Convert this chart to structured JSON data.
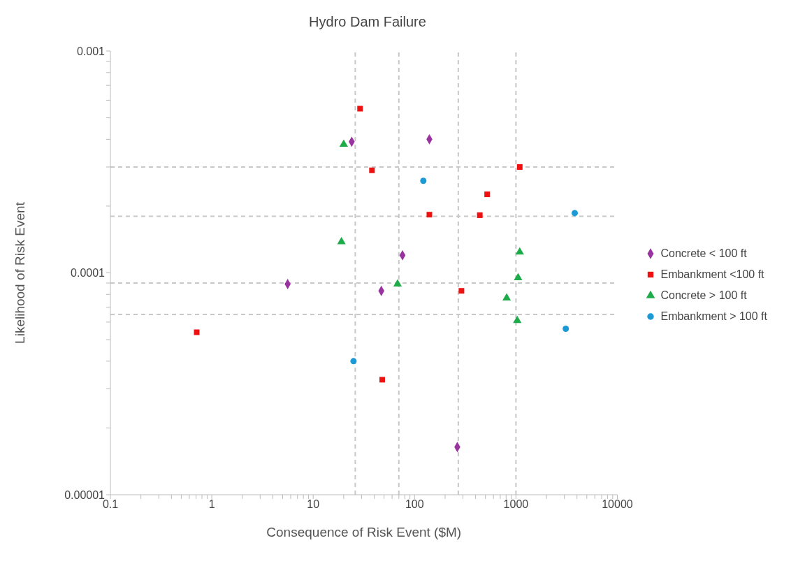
{
  "chart_data": {
    "type": "scatter",
    "title": "Hydro Dam Failure",
    "xlabel": "Consequence of Risk Event ($M)",
    "ylabel": "Likelihood of Risk Event",
    "log": "xy",
    "grid": false,
    "legend": "right",
    "xlim": [
      0.1,
      10000
    ],
    "ylim": [
      1e-05,
      0.001
    ],
    "xticks": [
      0.1,
      {
        "value": 0.2,
        "label": null
      },
      {
        "value": 0.3,
        "label": null
      },
      {
        "value": 0.4,
        "label": null
      },
      {
        "value": 0.5,
        "label": null
      },
      {
        "value": 0.6,
        "label": null
      },
      {
        "value": 0.7,
        "label": null
      },
      {
        "value": 0.8,
        "label": null
      },
      {
        "value": 0.9,
        "label": null
      },
      1,
      {
        "value": 2,
        "label": null
      },
      {
        "value": 3,
        "label": null
      },
      {
        "value": 4,
        "label": null
      },
      {
        "value": 5,
        "label": null
      },
      {
        "value": 6,
        "label": null
      },
      {
        "value": 7,
        "label": null
      },
      {
        "value": 8,
        "label": null
      },
      {
        "value": 9,
        "label": null
      },
      10,
      {
        "value": 20,
        "label": null
      },
      {
        "value": 30,
        "label": null
      },
      {
        "value": 40,
        "label": null
      },
      {
        "value": 50,
        "label": null
      },
      {
        "value": 60,
        "label": null
      },
      {
        "value": 70,
        "label": null
      },
      {
        "value": 80,
        "label": null
      },
      {
        "value": 90,
        "label": null
      },
      100,
      {
        "value": 200,
        "label": null
      },
      {
        "value": 300,
        "label": null
      },
      {
        "value": 400,
        "label": null
      },
      {
        "value": 500,
        "label": null
      },
      {
        "value": 600,
        "label": null
      },
      {
        "value": 700,
        "label": null
      },
      {
        "value": 800,
        "label": null
      },
      {
        "value": 900,
        "label": null
      },
      1000,
      {
        "value": 2000,
        "label": null
      },
      {
        "value": 3000,
        "label": null
      },
      {
        "value": 4000,
        "label": null
      },
      {
        "value": 5000,
        "label": null
      },
      {
        "value": 6000,
        "label": null
      },
      {
        "value": 7000,
        "label": null
      },
      {
        "value": 8000,
        "label": null
      },
      {
        "value": 9000,
        "label": null
      },
      10000
    ],
    "yticks": [
      {
        "value": 1e-05,
        "label": "0.00001"
      },
      {
        "value": 2e-05,
        "label": null
      },
      {
        "value": 3e-05,
        "label": null
      },
      {
        "value": 4e-05,
        "label": null
      },
      {
        "value": 5e-05,
        "label": null
      },
      {
        "value": 6e-05,
        "label": null
      },
      {
        "value": 7e-05,
        "label": null
      },
      {
        "value": 8e-05,
        "label": null
      },
      {
        "value": 9e-05,
        "label": null
      },
      0.0001,
      {
        "value": 0.0002,
        "label": null
      },
      {
        "value": 0.0003,
        "label": null
      },
      {
        "value": 0.0004,
        "label": null
      },
      {
        "value": 0.0005,
        "label": null
      },
      {
        "value": 0.0006,
        "label": null
      },
      {
        "value": 0.0007,
        "label": null
      },
      {
        "value": 0.0008,
        "label": null
      },
      {
        "value": 0.0009,
        "label": null
      },
      0.001
    ],
    "ref_lines": [
      {
        "axis": "x",
        "value": 26,
        "color": "#c8c8c8",
        "line_style": "dashed"
      },
      {
        "axis": "x",
        "value": 70,
        "color": "#c8c8c8",
        "line_style": "dashed"
      },
      {
        "axis": "x",
        "value": 270,
        "color": "#c8c8c8",
        "line_style": "dashed"
      },
      {
        "axis": "x",
        "value": 1000,
        "color": "#c8c8c8",
        "line_style": "dashed"
      },
      {
        "axis": "y",
        "value": 0.0003,
        "color": "#c8c8c8",
        "line_style": "dashed"
      },
      {
        "axis": "y",
        "value": 0.00018,
        "color": "#c8c8c8",
        "line_style": "dashed"
      },
      {
        "axis": "y",
        "value": 9e-05,
        "color": "#c8c8c8",
        "line_style": "dashed"
      },
      {
        "axis": "y",
        "value": 6.5e-05,
        "color": "#c8c8c8",
        "line_style": "dashed"
      }
    ],
    "series": [
      {
        "name": "Concrete < 100 ft",
        "color": "#9933a0",
        "marker": "diamond",
        "x": [
          24,
          140,
          76,
          5.6,
          47,
          264
        ],
        "values": [
          0.00039,
          0.0004,
          0.00012,
          8.9e-05,
          8.3e-05,
          1.64e-05
        ]
      },
      {
        "name": "Embankment <100 ft",
        "color": "#ee1111",
        "marker": "square",
        "x": [
          29,
          38,
          1090,
          520,
          140,
          440,
          290,
          0.71,
          48
        ],
        "values": [
          0.00055,
          0.00029,
          0.0003,
          0.000226,
          0.000183,
          0.000182,
          8.3e-05,
          5.4e-05,
          3.3e-05
        ]
      },
      {
        "name": "Concrete > 100 ft",
        "color": "#1eac4a",
        "marker": "triangle",
        "x": [
          20,
          19,
          68,
          1090,
          1050,
          810,
          1030
        ],
        "values": [
          0.00038,
          0.000138,
          8.9e-05,
          0.000124,
          9.5e-05,
          7.7e-05,
          6.1e-05
        ]
      },
      {
        "name": "Embankment > 100 ft",
        "color": "#1b9ad6",
        "marker": "circle",
        "x": [
          122,
          3800,
          3100,
          25
        ],
        "values": [
          0.00026,
          0.000186,
          5.6e-05,
          4e-05
        ]
      }
    ]
  }
}
